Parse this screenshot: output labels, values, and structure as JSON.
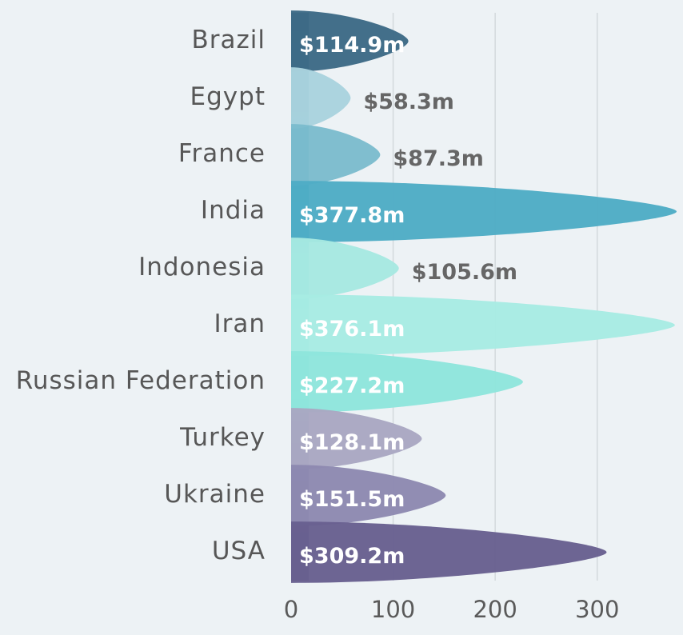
{
  "chart_data": {
    "type": "bar",
    "title": "",
    "xlabel": "",
    "ylabel": "",
    "xlim": [
      0,
      377.8
    ],
    "x_ticks": [
      "0",
      "100",
      "200",
      "300"
    ],
    "x_tick_values": [
      0,
      100,
      200,
      300
    ],
    "grid": true,
    "categories": [
      "Brazil",
      "Egypt",
      "France",
      "India",
      "Indonesia",
      "Iran",
      "Russian Federation",
      "Turkey",
      "Ukraine",
      "USA"
    ],
    "values": [
      114.9,
      58.3,
      87.3,
      377.8,
      105.6,
      376.1,
      227.2,
      128.1,
      151.5,
      309.2
    ],
    "value_labels": [
      "$114.9m",
      "$58.3m",
      "$87.3m",
      "$377.8m",
      "$105.6m",
      "$376.1m",
      "$227.2m",
      "$128.1m",
      "$151.5m",
      "$309.2m"
    ],
    "colors": [
      "#3d6a86",
      "#a9d3de",
      "#7cbccd",
      "#4eacc5",
      "#a6e8e1",
      "#a7ebe3",
      "#8ee5dc",
      "#a9a7c2",
      "#8d89b1",
      "#686090"
    ],
    "label_colors": [
      "#ffffff",
      "#666666",
      "#666666",
      "#ffffff",
      "#666666",
      "#ffffff",
      "#ffffff",
      "#ffffff",
      "#ffffff",
      "#ffffff"
    ]
  }
}
